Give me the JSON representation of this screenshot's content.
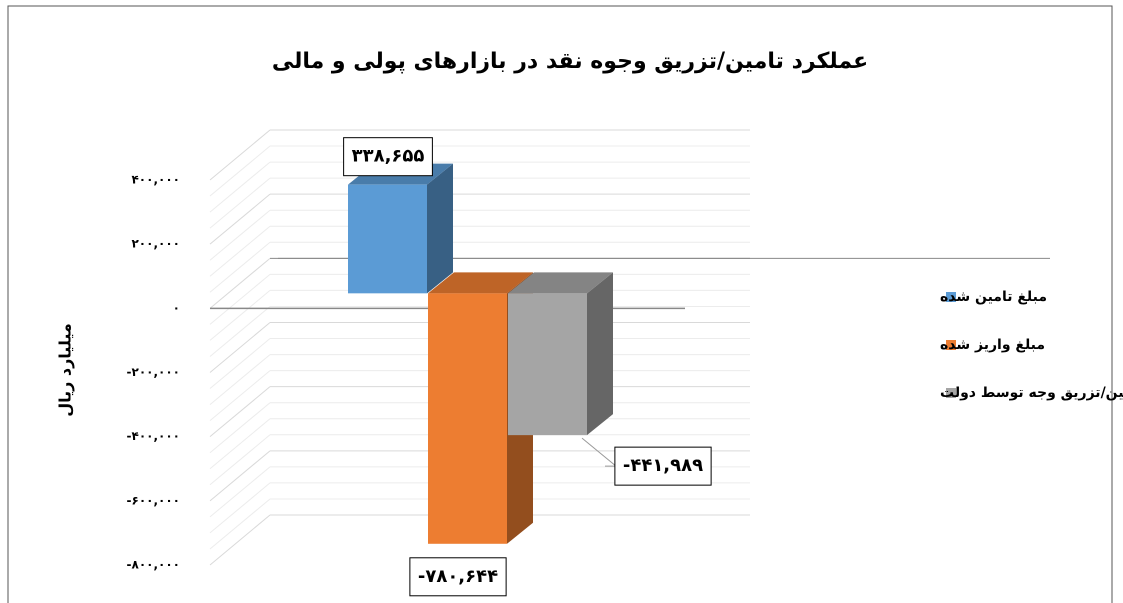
{
  "chart_data": {
    "type": "bar",
    "title": "عملکرد تامین/تزریق وجوه نقد در بازارهای پولی و مالی",
    "y_label": "میلیارد ریال",
    "categories": [
      null
    ],
    "series": [
      {
        "name": "مبلغ تامین شده",
        "color": "#5b9bd5",
        "values": [
          338655
        ],
        "value_labels": [
          "۳۳۸,۶۵۵"
        ]
      },
      {
        "name": "مبلغ واریز شده",
        "color": "#ed7d31",
        "values": [
          -780644
        ],
        "value_labels": [
          "-۷۸۰,۶۴۴"
        ]
      },
      {
        "name": "خالص تامین/تزریق وجه توسط دولت",
        "color": "#a5a5a5",
        "values": [
          -441989
        ],
        "value_labels": [
          "-۴۴۱,۹۸۹"
        ]
      }
    ],
    "ylim": [
      -800000,
      400000
    ],
    "yticks": [
      {
        "value": 400000,
        "label": "۴۰۰,۰۰۰"
      },
      {
        "value": 200000,
        "label": "۲۰۰,۰۰۰"
      },
      {
        "value": 0,
        "label": "۰"
      },
      {
        "value": -200000,
        "label": "-۲۰۰,۰۰۰"
      },
      {
        "value": -400000,
        "label": "-۴۰۰,۰۰۰"
      },
      {
        "value": -600000,
        "label": "-۶۰۰,۰۰۰"
      },
      {
        "value": -800000,
        "label": "-۸۰۰,۰۰۰"
      }
    ],
    "grid": true,
    "legend": "right"
  }
}
